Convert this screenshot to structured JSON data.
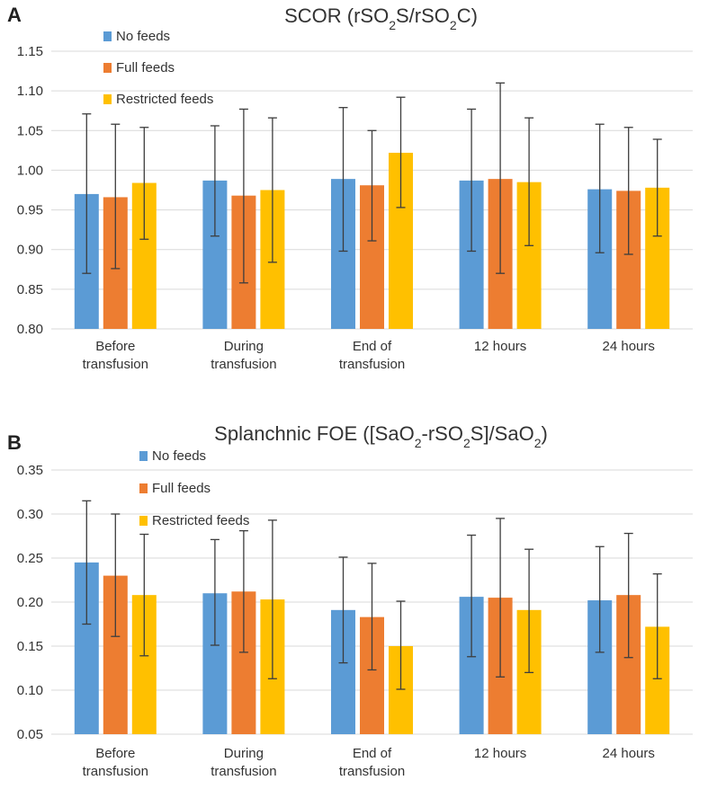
{
  "chart_data": [
    {
      "panel": "A",
      "type": "bar",
      "title_main": "SCOR (rSO",
      "title_sub1": "2",
      "title_mid": "S/rSO",
      "title_sub2": "2",
      "title_end": "C)",
      "categories": [
        [
          "Before",
          "transfusion"
        ],
        [
          "During",
          "transfusion"
        ],
        [
          "End of",
          "transfusion"
        ],
        [
          "12 hours"
        ],
        [
          "24 hours"
        ]
      ],
      "ylim": [
        0.8,
        1.15
      ],
      "yticks": [
        "0.80",
        "0.85",
        "0.90",
        "0.95",
        "1.00",
        "1.05",
        "1.10",
        "1.15"
      ],
      "grid": true,
      "legend_position": "top-left",
      "series": [
        {
          "name": "No feeds",
          "color": "#5b9bd5",
          "values": [
            0.97,
            0.987,
            0.989,
            0.987,
            0.976
          ],
          "err_low": [
            0.87,
            0.917,
            0.898,
            0.898,
            0.896
          ],
          "err_high": [
            1.071,
            1.056,
            1.079,
            1.077,
            1.058
          ]
        },
        {
          "name": "Full feeds",
          "color": "#ed7d31",
          "values": [
            0.966,
            0.968,
            0.981,
            0.989,
            0.974
          ],
          "err_low": [
            0.876,
            0.858,
            0.911,
            0.87,
            0.894
          ],
          "err_high": [
            1.058,
            1.077,
            1.05,
            1.11,
            1.054
          ]
        },
        {
          "name": "Restricted feeds",
          "color": "#ffc000",
          "values": [
            0.984,
            0.975,
            1.022,
            0.985,
            0.978
          ],
          "err_low": [
            0.913,
            0.884,
            0.953,
            0.905,
            0.917
          ],
          "err_high": [
            1.054,
            1.066,
            1.092,
            1.066,
            1.039
          ]
        }
      ]
    },
    {
      "panel": "B",
      "type": "bar",
      "title_main": "Splanchnic FOE ([SaO",
      "title_sub1": "2",
      "title_mid": "-rSO",
      "title_sub2": "2",
      "title_mid2": "S]/SaO",
      "title_sub3": "2",
      "title_end": ")",
      "categories": [
        [
          "Before",
          "transfusion"
        ],
        [
          "During",
          "transfusion"
        ],
        [
          "End of",
          "transfusion"
        ],
        [
          "12 hours"
        ],
        [
          "24 hours"
        ]
      ],
      "ylim": [
        0.05,
        0.35
      ],
      "yticks": [
        "0.05",
        "0.10",
        "0.15",
        "0.20",
        "0.25",
        "0.30",
        "0.35"
      ],
      "grid": true,
      "legend_position": "top-left",
      "series": [
        {
          "name": "No feeds",
          "color": "#5b9bd5",
          "values": [
            0.245,
            0.21,
            0.191,
            0.206,
            0.202
          ],
          "err_low": [
            0.175,
            0.151,
            0.131,
            0.138,
            0.143
          ],
          "err_high": [
            0.315,
            0.271,
            0.251,
            0.276,
            0.263
          ]
        },
        {
          "name": "Full feeds",
          "color": "#ed7d31",
          "values": [
            0.23,
            0.212,
            0.183,
            0.205,
            0.208
          ],
          "err_low": [
            0.161,
            0.143,
            0.123,
            0.115,
            0.137
          ],
          "err_high": [
            0.3,
            0.281,
            0.244,
            0.295,
            0.278
          ]
        },
        {
          "name": "Restricted feeds",
          "color": "#ffc000",
          "values": [
            0.208,
            0.203,
            0.15,
            0.191,
            0.172
          ],
          "err_low": [
            0.139,
            0.113,
            0.101,
            0.12,
            0.113
          ],
          "err_high": [
            0.277,
            0.293,
            0.201,
            0.26,
            0.232
          ]
        }
      ]
    }
  ]
}
